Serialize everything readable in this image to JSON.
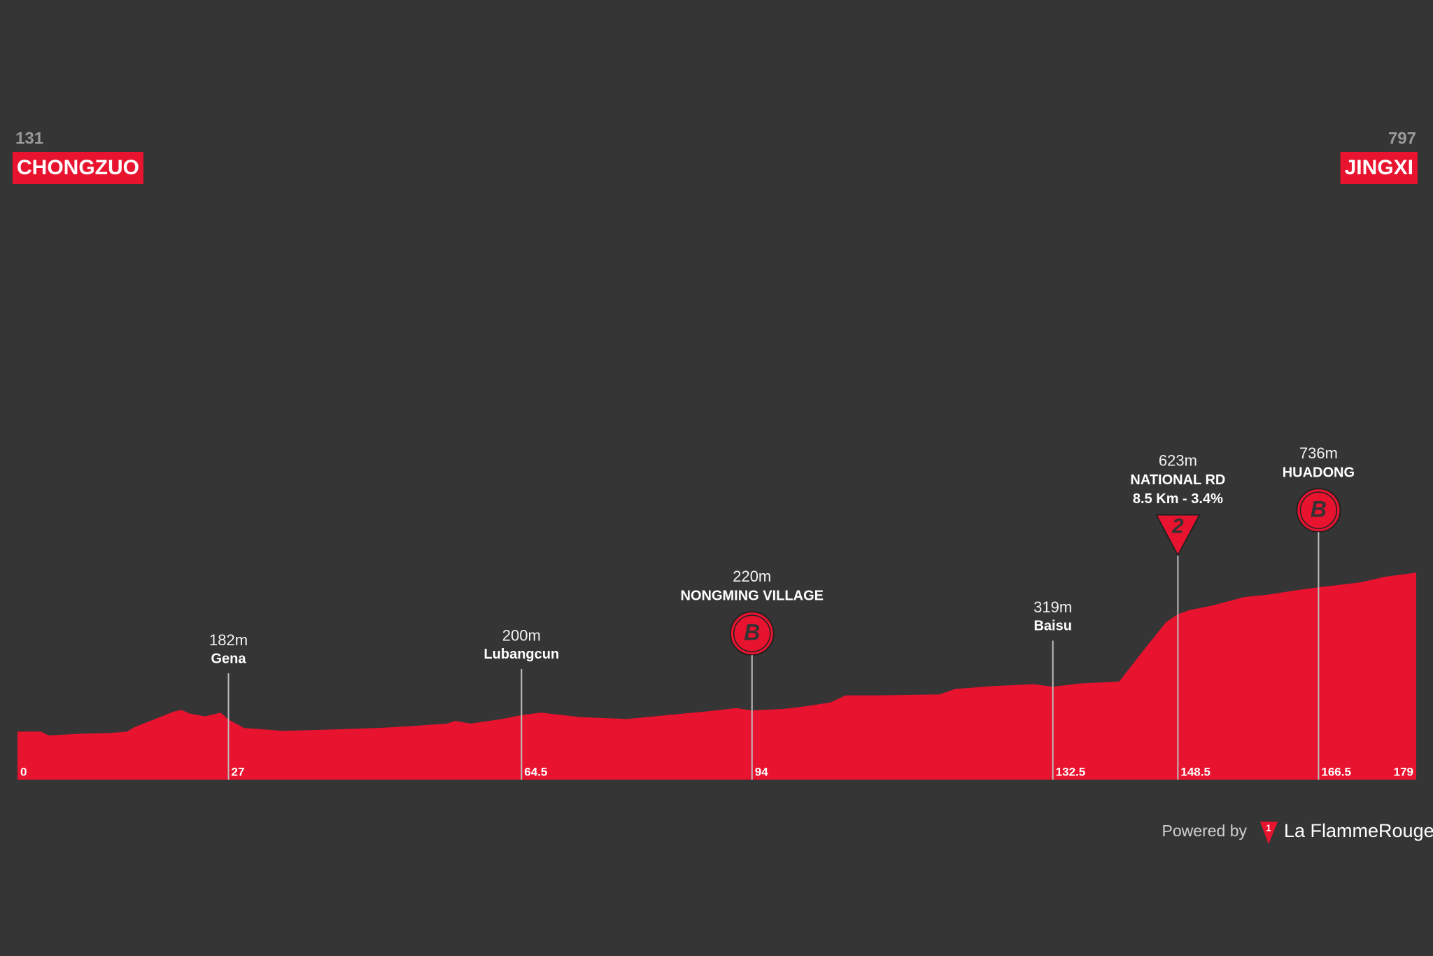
{
  "chart_data": {
    "type": "area",
    "color": "#e8132f",
    "x": [
      0,
      3,
      4,
      8,
      12,
      14,
      15,
      17,
      20,
      21,
      22,
      24,
      26,
      27,
      29,
      31,
      34,
      38,
      42,
      46,
      50,
      55,
      56,
      58,
      62,
      64.5,
      67,
      72,
      78,
      84,
      88,
      92,
      94,
      98,
      101,
      104,
      106,
      110,
      118,
      120,
      125,
      130,
      132.5,
      136,
      141,
      144,
      147,
      148.5,
      150,
      153,
      157,
      160,
      164,
      166.5,
      169,
      172,
      175,
      179
    ],
    "values": [
      131,
      131,
      115,
      122,
      126,
      131,
      150,
      176,
      215,
      222,
      207,
      195,
      211,
      182,
      146,
      142,
      134,
      138,
      142,
      146,
      153,
      165,
      176,
      165,
      184,
      200,
      211,
      192,
      184,
      203,
      215,
      230,
      220,
      226,
      238,
      253,
      283,
      283,
      287,
      310,
      322,
      330,
      319,
      333,
      341,
      467,
      590,
      623,
      640,
      660,
      695,
      705,
      725,
      736,
      745,
      757,
      780,
      797
    ],
    "xlim": [
      0,
      179
    ],
    "ylim": [
      -70,
      2000
    ],
    "xticks": [
      0,
      27,
      64.5,
      94,
      132.5,
      148.5,
      166.5,
      179
    ],
    "start": {
      "altitude": 131,
      "name": "CHONGZUO"
    },
    "finish": {
      "altitude": 797,
      "name": "JINGXI"
    },
    "waypoints": [
      {
        "km": 27,
        "altitude": 182,
        "altitude_label": "182m",
        "name": "Gena"
      },
      {
        "km": 64.5,
        "altitude": 200,
        "altitude_label": "200m",
        "name": "Lubangcun"
      },
      {
        "km": 94,
        "altitude": 220,
        "altitude_label": "220m",
        "name": "NONGMING VILLAGE",
        "badge": "B"
      },
      {
        "km": 132.5,
        "altitude": 319,
        "altitude_label": "319m",
        "name": "Baisu"
      },
      {
        "km": 148.5,
        "altitude": 623,
        "altitude_label": "623m",
        "name": "NATIONAL RD",
        "detail": "8.5 Km - 3.4%",
        "climb_category": "2"
      },
      {
        "km": 166.5,
        "altitude": 736,
        "altitude_label": "736m",
        "name": "HUADONG",
        "badge": "B"
      }
    ]
  },
  "footer": {
    "powered_by": "Powered by",
    "logo_number": "1",
    "brand": "La FlammeRouge"
  }
}
